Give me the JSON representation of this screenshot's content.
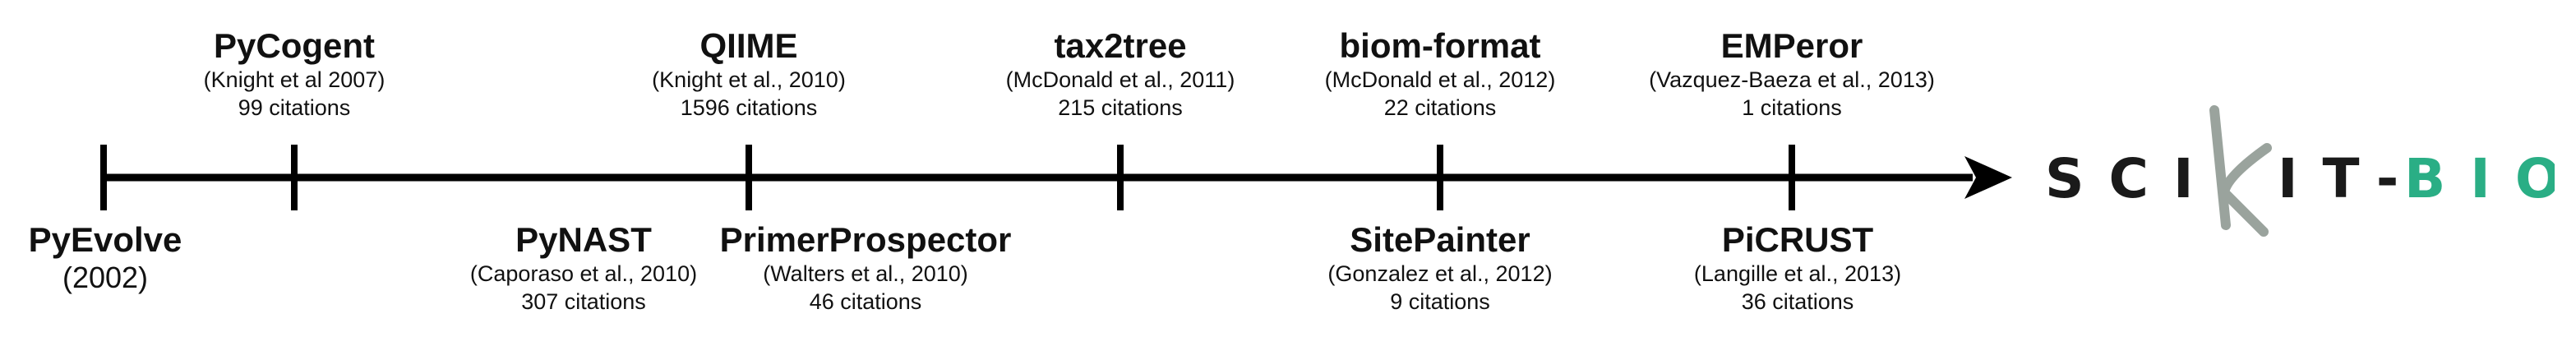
{
  "milestones_top": [
    {
      "id": "pycogent",
      "name": "PyCogent",
      "citation": "(Knight et al 2007)",
      "count": "99 citations"
    },
    {
      "id": "qiime",
      "name": "QIIME",
      "citation": "(Knight et al., 2010)",
      "count": "1596 citations"
    },
    {
      "id": "tax2tree",
      "name": "tax2tree",
      "citation": "(McDonald et al., 2011)",
      "count": "215 citations"
    },
    {
      "id": "biom-format",
      "name": "biom-format",
      "citation": "(McDonald et al., 2012)",
      "count": "22 citations"
    },
    {
      "id": "emperor",
      "name": "EMPeror",
      "citation": "(Vazquez-Baeza et al., 2013)",
      "count": "1 citations"
    }
  ],
  "milestones_bottom": [
    {
      "id": "pyevolve",
      "name": "PyEvolve",
      "year": "(2002)"
    },
    {
      "id": "pynast",
      "name": "PyNAST",
      "citation": "(Caporaso et al., 2010)",
      "count": "307 citations"
    },
    {
      "id": "primerprospector",
      "name": "PrimerProspector",
      "citation": "(Walters et al., 2010)",
      "count": "46 citations"
    },
    {
      "id": "sitepainter",
      "name": "SitePainter",
      "citation": "(Gonzalez et al., 2012)",
      "count": "9 citations"
    },
    {
      "id": "picrust",
      "name": "PiCRUST",
      "citation": "(Langille et al., 2013)",
      "count": "36 citations"
    }
  ],
  "logo": {
    "text_left": "SCI",
    "text_k": "K",
    "text_mid": "IT-",
    "text_right": "BIO",
    "color_dark": "#1a1a1a",
    "color_accent": "#2aae85",
    "color_k": "#9aa39d"
  },
  "colors": {
    "line": "#000000"
  }
}
